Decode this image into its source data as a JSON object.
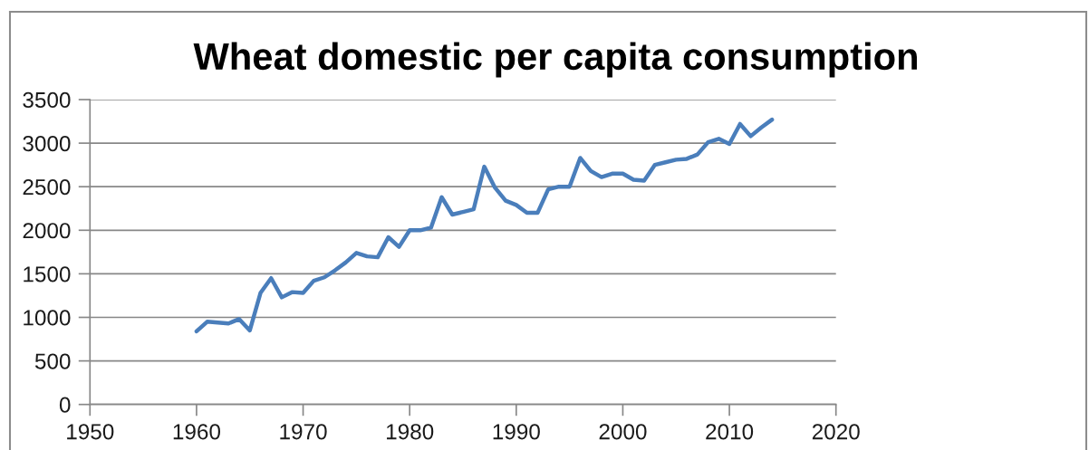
{
  "chart_data": {
    "type": "line",
    "title": "Wheat domestic per capita consumption",
    "x": [
      1960,
      1961,
      1962,
      1963,
      1964,
      1965,
      1966,
      1967,
      1968,
      1969,
      1970,
      1971,
      1972,
      1973,
      1974,
      1975,
      1976,
      1977,
      1978,
      1979,
      1980,
      1981,
      1982,
      1983,
      1984,
      1985,
      1986,
      1987,
      1988,
      1989,
      1990,
      1991,
      1992,
      1993,
      1994,
      1995,
      1996,
      1997,
      1998,
      1999,
      2000,
      2001,
      2002,
      2003,
      2004,
      2005,
      2006,
      2007,
      2008,
      2009,
      2010,
      2011,
      2012,
      2013,
      2014
    ],
    "series": [
      {
        "color": "#4a7ebb",
        "values": [
          840,
          950,
          940,
          930,
          980,
          850,
          1280,
          1450,
          1230,
          1290,
          1280,
          1420,
          1460,
          1540,
          1630,
          1740,
          1700,
          1690,
          1920,
          1810,
          2000,
          2000,
          2030,
          2380,
          2180,
          2210,
          2240,
          2730,
          2490,
          2340,
          2290,
          2200,
          2200,
          2470,
          2500,
          2500,
          2830,
          2680,
          2610,
          2650,
          2650,
          2580,
          2570,
          2750,
          2780,
          2810,
          2820,
          2870,
          3010,
          3050,
          2990,
          3220,
          3080,
          3180,
          3270
        ]
      }
    ],
    "xlim": [
      1950,
      2020
    ],
    "xticks": [
      1950,
      1960,
      1970,
      1980,
      1990,
      2000,
      2010,
      2020
    ],
    "ylim": [
      0,
      3500
    ],
    "yticks": [
      0,
      500,
      1000,
      1500,
      2000,
      2500,
      3000,
      3500
    ],
    "grid": "y",
    "marker": "none",
    "line_style": "solid"
  }
}
